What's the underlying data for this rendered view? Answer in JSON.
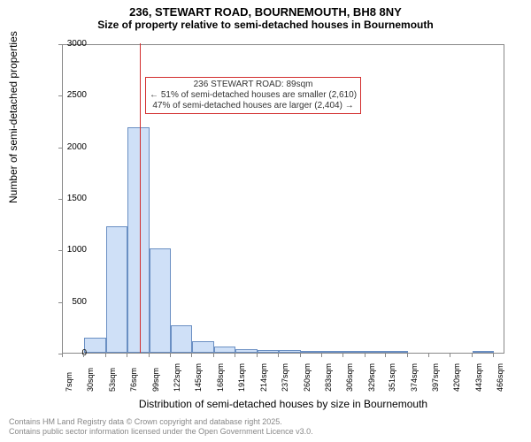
{
  "title_line1": "236, STEWART ROAD, BOURNEMOUTH, BH8 8NY",
  "title_line2": "Size of property relative to semi-detached houses in Bournemouth",
  "y_axis_label": "Number of semi-detached properties",
  "x_axis_label": "Distribution of semi-detached houses by size in Bournemouth",
  "title_fontsize": 13,
  "subtitle_fontsize": 12,
  "axis_label_fontsize": 12,
  "tick_fontsize": 10,
  "xtick_fontsize": 9,
  "annot_fontsize": 10,
  "footer_fontsize": 9,
  "chart": {
    "type": "histogram",
    "ylim": [
      0,
      3000
    ],
    "ytick_step": 500,
    "yticks": [
      0,
      500,
      1000,
      1500,
      2000,
      2500,
      3000
    ],
    "x_min": 7,
    "x_max": 478,
    "xtick_start": 7,
    "xtick_step": 23,
    "xticks": [
      7,
      30,
      53,
      76,
      99,
      122,
      145,
      168,
      191,
      214,
      237,
      260,
      283,
      306,
      329,
      351,
      374,
      397,
      420,
      443,
      466
    ],
    "xtick_suffix": "sqm",
    "bin_width_sqm": 23,
    "bar_fill": "#cfe0f7",
    "bar_stroke": "#6a8fc3",
    "background": "#ffffff",
    "plot_border": "#888888",
    "bars": [
      {
        "x_start": 7,
        "count": 0
      },
      {
        "x_start": 30,
        "count": 150
      },
      {
        "x_start": 53,
        "count": 1230
      },
      {
        "x_start": 76,
        "count": 2190
      },
      {
        "x_start": 99,
        "count": 1010
      },
      {
        "x_start": 122,
        "count": 265
      },
      {
        "x_start": 145,
        "count": 110
      },
      {
        "x_start": 168,
        "count": 60
      },
      {
        "x_start": 191,
        "count": 35
      },
      {
        "x_start": 214,
        "count": 30
      },
      {
        "x_start": 237,
        "count": 25
      },
      {
        "x_start": 260,
        "count": 5
      },
      {
        "x_start": 283,
        "count": 15
      },
      {
        "x_start": 306,
        "count": 5
      },
      {
        "x_start": 329,
        "count": 5
      },
      {
        "x_start": 351,
        "count": 3
      },
      {
        "x_start": 374,
        "count": 0
      },
      {
        "x_start": 397,
        "count": 0
      },
      {
        "x_start": 420,
        "count": 0
      },
      {
        "x_start": 443,
        "count": 3
      },
      {
        "x_start": 466,
        "count": 0
      }
    ],
    "ref_line": {
      "x": 89,
      "color": "#d22e2e",
      "width": 1
    },
    "annotation": {
      "line1": "236 STEWART ROAD: 89sqm",
      "line2": "← 51% of semi-detached houses are smaller (2,610)",
      "line3": "47% of semi-detached houses are larger (2,404) →",
      "border_color": "#d22e2e",
      "text_color": "#333333",
      "y_top": 2690
    }
  },
  "footer_line1": "Contains HM Land Registry data © Crown copyright and database right 2025.",
  "footer_line2": "Contains public sector information licensed under the Open Government Licence v3.0."
}
